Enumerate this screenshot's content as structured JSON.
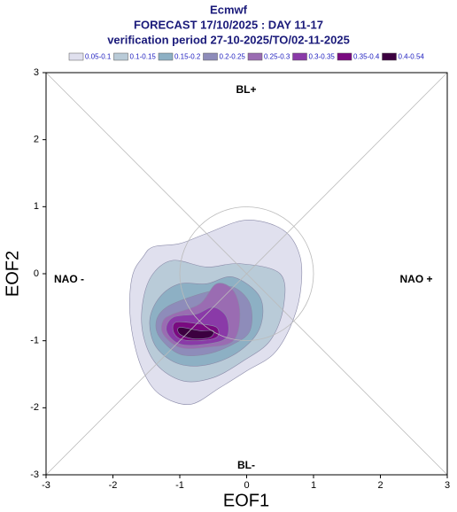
{
  "chart_data": {
    "type": "contour",
    "title": "Ecmwf",
    "subtitle": "FORECAST 17/10/2025 : DAY 11-17",
    "subtitle2": "verification period 27-10-2025/TO/02-11-2025",
    "x_label": "EOF1",
    "y_label": "EOF2",
    "xlim": [
      -3,
      3
    ],
    "ylim": [
      -3,
      3
    ],
    "xticks": [
      -3,
      -2,
      -1,
      0,
      1,
      2,
      3
    ],
    "yticks": [
      -3,
      -2,
      -1,
      0,
      1,
      2,
      3
    ],
    "annotations": [
      "BL+",
      "BL-",
      "NAO -",
      "NAO +"
    ],
    "series": [
      {
        "name": "0.05-0.1",
        "color": "#e0e0ee",
        "x": [
          -1.55,
          -1.4,
          -1.0,
          -0.6,
          0.0,
          0.55,
          0.8,
          0.8,
          0.65,
          0.4,
          0.0,
          -0.4,
          -0.85,
          -1.3,
          -1.55,
          -1.7,
          -1.75,
          -1.7
        ],
        "y": [
          0.25,
          0.4,
          0.45,
          0.6,
          0.8,
          0.65,
          0.25,
          -0.3,
          -0.8,
          -1.2,
          -1.45,
          -1.7,
          -1.95,
          -1.8,
          -1.45,
          -0.95,
          -0.45,
          0.0
        ]
      },
      {
        "name": "0.1-0.15",
        "color": "#b9cbd8",
        "x": [
          -1.4,
          -1.1,
          -0.6,
          -0.1,
          0.5,
          0.55,
          0.35,
          -0.05,
          -0.5,
          -0.95,
          -1.35,
          -1.55,
          -1.55
        ],
        "y": [
          0.0,
          0.2,
          0.1,
          0.15,
          0.0,
          -0.5,
          -1.0,
          -1.3,
          -1.55,
          -1.6,
          -1.35,
          -0.9,
          -0.4
        ]
      },
      {
        "name": "0.15-0.2",
        "color": "#8db0c4",
        "x": [
          -1.3,
          -1.0,
          -0.6,
          -0.2,
          0.2,
          0.2,
          -0.1,
          -0.55,
          -1.0,
          -1.35,
          -1.45
        ],
        "y": [
          -0.35,
          -0.15,
          -0.15,
          -0.05,
          -0.35,
          -0.8,
          -1.15,
          -1.35,
          -1.35,
          -1.1,
          -0.7
        ]
      },
      {
        "name": "0.2-0.25",
        "color": "#8e8cba",
        "x": [
          -1.2,
          -0.85,
          -0.5,
          -0.2,
          0.05,
          0.05,
          -0.2,
          -0.6,
          -1.0,
          -1.3,
          -1.35
        ],
        "y": [
          -0.5,
          -0.35,
          -0.25,
          -0.2,
          -0.45,
          -0.85,
          -1.05,
          -1.2,
          -1.2,
          -0.95,
          -0.7
        ]
      },
      {
        "name": "0.25-0.3",
        "color": "#9a6cb2",
        "x": [
          -1.1,
          -0.7,
          -0.45,
          -0.2,
          -0.1,
          -0.2,
          -0.6,
          -1.0,
          -1.25,
          -1.25
        ],
        "y": [
          -0.6,
          -0.45,
          -0.15,
          -0.25,
          -0.6,
          -1.0,
          -1.1,
          -1.1,
          -0.9,
          -0.7
        ]
      },
      {
        "name": "0.3-0.35",
        "color": "#8a3aa8",
        "x": [
          -1.1,
          -0.75,
          -0.5,
          -0.3,
          -0.3,
          -0.6,
          -1.0,
          -1.2
        ],
        "y": [
          -0.65,
          -0.6,
          -0.5,
          -0.65,
          -0.95,
          -1.05,
          -1.05,
          -0.85
        ]
      },
      {
        "name": "0.35-0.4",
        "color": "#7a0a80",
        "x": [
          -1.05,
          -0.7,
          -0.45,
          -0.45,
          -0.75,
          -1.0,
          -1.1
        ],
        "y": [
          -0.72,
          -0.75,
          -0.8,
          -0.95,
          -1.0,
          -0.97,
          -0.85
        ]
      },
      {
        "name": "0.4-0.54",
        "color": "#3c0040",
        "x": [
          -1.0,
          -0.7,
          -0.5,
          -0.55,
          -0.8,
          -1.0
        ],
        "y": [
          -0.8,
          -0.85,
          -0.85,
          -0.95,
          -0.97,
          -0.9
        ]
      }
    ]
  }
}
